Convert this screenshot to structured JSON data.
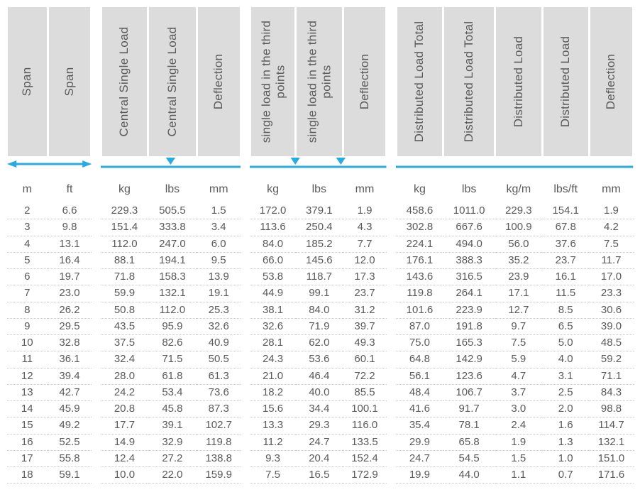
{
  "style": {
    "header_bg": "#dcdcdc",
    "accent": "#29abe2",
    "text_color": "#5a5a5a",
    "row_divider": "#c8c8c8",
    "font_family": "Arial",
    "header_fontsize_pt": 13,
    "unit_fontsize_pt": 12,
    "data_fontsize_pt": 11
  },
  "column_groups": [
    {
      "cols": 2,
      "diagram": "span-arrow"
    },
    {
      "cols": 3,
      "diagram": "central-load"
    },
    {
      "cols": 3,
      "diagram": "third-points"
    },
    {
      "cols": 5,
      "diagram": "distributed"
    }
  ],
  "headers": [
    "Span",
    "Span",
    "Central Single Load",
    "Central Single Load",
    "Deflection",
    "single load in the third points",
    "single load in the third points",
    "Deflection",
    "Distributed Load Total",
    "Distributed Load Total",
    "Distributed Load",
    "Distributed Load",
    "Deflection"
  ],
  "units": [
    "m",
    "ft",
    "kg",
    "lbs",
    "mm",
    "kg",
    "lbs",
    "mm",
    "kg",
    "lbs",
    "kg/m",
    "lbs/ft",
    "mm"
  ],
  "rows": [
    [
      "2",
      "6.6",
      "229.3",
      "505.5",
      "1.5",
      "172.0",
      "379.1",
      "1.9",
      "458.6",
      "1011.0",
      "229.3",
      "154.1",
      "1.9"
    ],
    [
      "3",
      "9.8",
      "151.4",
      "333.8",
      "3.4",
      "113.6",
      "250.4",
      "4.3",
      "302.8",
      "667.6",
      "100.9",
      "67.8",
      "4.2"
    ],
    [
      "4",
      "13.1",
      "112.0",
      "247.0",
      "6.0",
      "84.0",
      "185.2",
      "7.7",
      "224.1",
      "494.0",
      "56.0",
      "37.6",
      "7.5"
    ],
    [
      "5",
      "16.4",
      "88.1",
      "194.1",
      "9.5",
      "66.0",
      "145.6",
      "12.0",
      "176.1",
      "388.3",
      "35.2",
      "23.7",
      "11.7"
    ],
    [
      "6",
      "19.7",
      "71.8",
      "158.3",
      "13.9",
      "53.8",
      "118.7",
      "17.3",
      "143.6",
      "316.5",
      "23.9",
      "16.1",
      "17.0"
    ],
    [
      "7",
      "23.0",
      "59.9",
      "132.1",
      "19.1",
      "44.9",
      "99.1",
      "23.7",
      "119.8",
      "264.1",
      "17.1",
      "11.5",
      "23.3"
    ],
    [
      "8",
      "26.2",
      "50.8",
      "112.0",
      "25.3",
      "38.1",
      "84.0",
      "31.2",
      "101.6",
      "223.9",
      "12.7",
      "8.5",
      "30.6"
    ],
    [
      "9",
      "29.5",
      "43.5",
      "95.9",
      "32.6",
      "32.6",
      "71.9",
      "39.7",
      "87.0",
      "191.8",
      "9.7",
      "6.5",
      "39.0"
    ],
    [
      "10",
      "32.8",
      "37.5",
      "82.6",
      "40.9",
      "28.1",
      "62.0",
      "49.3",
      "75.0",
      "165.3",
      "7.5",
      "5.0",
      "48.5"
    ],
    [
      "11",
      "36.1",
      "32.4",
      "71.5",
      "50.5",
      "24.3",
      "53.6",
      "60.1",
      "64.8",
      "142.9",
      "5.9",
      "4.0",
      "59.2"
    ],
    [
      "12",
      "39.4",
      "28.0",
      "61.8",
      "61.3",
      "21.0",
      "46.4",
      "72.2",
      "56.1",
      "123.6",
      "4.7",
      "3.1",
      "71.1"
    ],
    [
      "13",
      "42.7",
      "24.2",
      "53.4",
      "73.6",
      "18.2",
      "40.0",
      "85.5",
      "48.4",
      "106.7",
      "3.7",
      "2.5",
      "84.3"
    ],
    [
      "14",
      "45.9",
      "20.8",
      "45.8",
      "87.3",
      "15.6",
      "34.4",
      "100.1",
      "41.6",
      "91.7",
      "3.0",
      "2.0",
      "98.8"
    ],
    [
      "15",
      "49.2",
      "17.7",
      "39.1",
      "102.7",
      "13.3",
      "29.3",
      "116.0",
      "35.4",
      "78.1",
      "2.4",
      "1.6",
      "114.7"
    ],
    [
      "16",
      "52.5",
      "14.9",
      "32.9",
      "119.8",
      "11.2",
      "24.7",
      "133.5",
      "29.9",
      "65.8",
      "1.9",
      "1.3",
      "132.1"
    ],
    [
      "17",
      "55.8",
      "12.4",
      "27.2",
      "138.8",
      "9.3",
      "20.4",
      "152.4",
      "24.7",
      "54.5",
      "1.5",
      "1.0",
      "151.0"
    ],
    [
      "18",
      "59.1",
      "10.0",
      "22.0",
      "159.9",
      "7.5",
      "16.5",
      "172.9",
      "19.9",
      "44.0",
      "1.1",
      "0.7",
      "171.6"
    ]
  ]
}
